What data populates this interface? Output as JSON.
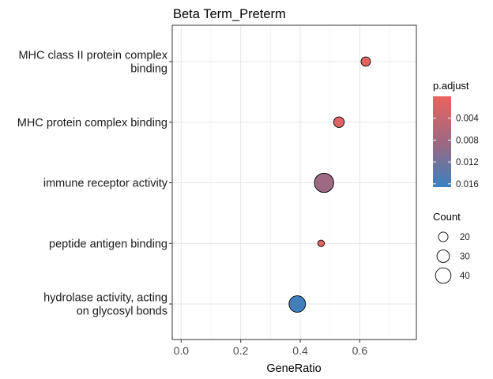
{
  "chart_data": {
    "type": "scatter",
    "title": "Beta Term_Preterm",
    "xlabel": "GeneRatio",
    "ylabel": "",
    "xlim": [
      -0.03,
      0.79
    ],
    "x_ticks": [
      0.0,
      0.2,
      0.4,
      0.6
    ],
    "x_tick_labels": [
      "0.0",
      "0.2",
      "0.4",
      "0.6"
    ],
    "grid": true,
    "categories": [
      [
        "MHC class II protein complex",
        "binding"
      ],
      [
        "MHC protein complex binding"
      ],
      [
        "immune receptor activity"
      ],
      [
        "peptide antigen binding"
      ],
      [
        "hydrolase activity, acting",
        "on glycosyl bonds"
      ]
    ],
    "points": [
      {
        "x": 0.62,
        "count": 21,
        "p_adjust": 0.0007
      },
      {
        "x": 0.53,
        "count": 24,
        "p_adjust": 0.0012
      },
      {
        "x": 0.48,
        "count": 46,
        "p_adjust": 0.0085
      },
      {
        "x": 0.47,
        "count": 14,
        "p_adjust": 0.001
      },
      {
        "x": 0.39,
        "count": 39,
        "p_adjust": 0.016
      }
    ],
    "color_legend": {
      "title": "p.adjust",
      "range": [
        0.0,
        0.0166
      ],
      "ticks": [
        0.004,
        0.008,
        0.012,
        0.016
      ],
      "tick_labels": [
        "0.004",
        "0.008",
        "0.012",
        "0.016"
      ],
      "low_color": "#E8645E",
      "mid_color": "#A06880",
      "high_color": "#3A80C0"
    },
    "size_legend": {
      "title": "Count",
      "values": [
        20,
        30,
        40
      ],
      "labels": [
        "20",
        "30",
        "40"
      ],
      "range": [
        14,
        46
      ]
    },
    "legend_position": "right"
  }
}
